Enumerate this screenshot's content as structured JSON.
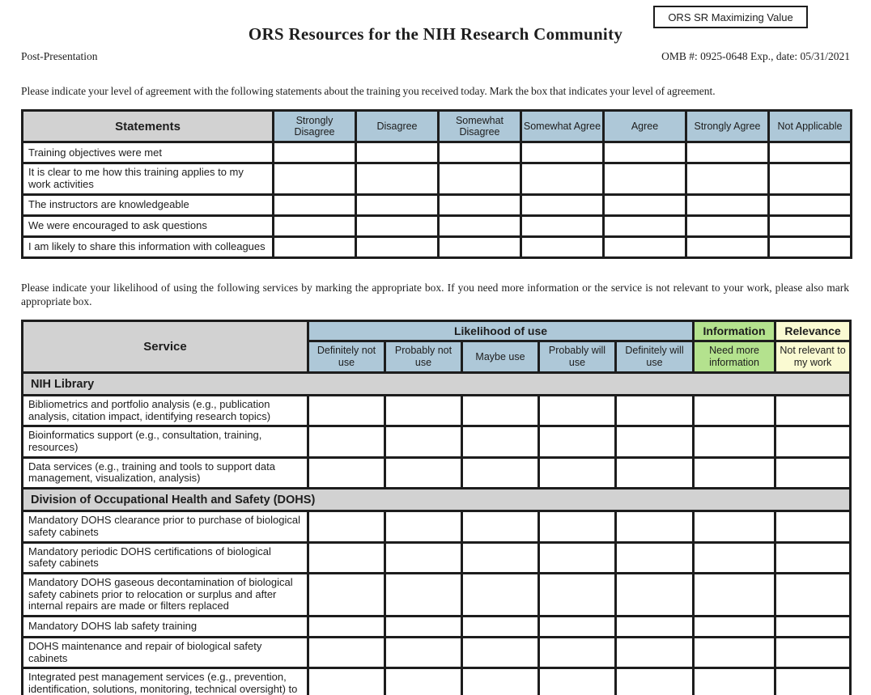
{
  "header": {
    "corner_tag": "ORS SR Maximizing Value",
    "title": "ORS Resources for the NIH Research Community",
    "form_stage": "Post-Presentation",
    "omb_line": "OMB #: 0925-0648 Exp., date: 05/31/2021"
  },
  "instructions": {
    "agreement": "Please indicate your level of agreement with the following statements about the training you received today. Mark the box that indicates your level of agreement.",
    "services": "Please indicate your likelihood of using the following services by marking the appropriate box. If you need more information or the service is not relevant to your work, please also mark appropriate box."
  },
  "colors": {
    "blue": "#aec8d8",
    "gray": "#d2d2d2",
    "green": "#b4e28e",
    "yellow": "#fafad2",
    "border": "#1d1d1d"
  },
  "agreement_table": {
    "corner_header": "Statements",
    "columns": [
      "Strongly Disagree",
      "Disagree",
      "Somewhat Disagree",
      "Somewhat Agree",
      "Agree",
      "Strongly Agree",
      "Not Applicable"
    ],
    "rows": [
      "Training objectives were met",
      "It is clear to me how this training applies to my work activities",
      "The instructors are knowledgeable",
      "We were encouraged to ask questions",
      "I am likely to share this information with colleagues"
    ]
  },
  "services_table": {
    "corner_header": "Service",
    "groups": [
      {
        "label": "Likelihood of use",
        "span": 5,
        "color": "blue"
      },
      {
        "label": "Information",
        "span": 1,
        "color": "green"
      },
      {
        "label": "Relevance",
        "span": 1,
        "color": "yellow"
      }
    ],
    "columns": [
      {
        "label": "Definitely not use",
        "color": "blue"
      },
      {
        "label": "Probably not use",
        "color": "blue"
      },
      {
        "label": "Maybe use",
        "color": "blue"
      },
      {
        "label": "Probably will use",
        "color": "blue"
      },
      {
        "label": "Definitely will use",
        "color": "blue"
      },
      {
        "label": "Need more information",
        "color": "green"
      },
      {
        "label": "Not relevant to my work",
        "color": "yellow"
      }
    ],
    "sections": [
      {
        "title": "NIH Library",
        "rows": [
          "Bibliometrics and portfolio analysis (e.g., publication analysis, citation impact, identifying research topics)",
          "Bioinformatics support (e.g., consultation, training, resources)",
          "Data services (e.g., training and tools to support data management, visualization, analysis)"
        ]
      },
      {
        "title": "Division of Occupational Health and Safety (DOHS)",
        "rows": [
          "Mandatory DOHS clearance prior to purchase of biological safety cabinets",
          "Mandatory periodic DOHS certifications of biological safety cabinets",
          "Mandatory DOHS gaseous decontamination of biological safety cabinets prior to relocation or surplus and after internal repairs are made or filters replaced",
          "Mandatory DOHS lab safety training",
          "DOHS maintenance and repair of biological safety cabinets",
          "Integrated pest management services (e.g., prevention, identification, solutions, monitoring, technical oversight) to ensure compliance with a variety of accreditation programs and regulations necessary to NIH"
        ]
      }
    ]
  }
}
